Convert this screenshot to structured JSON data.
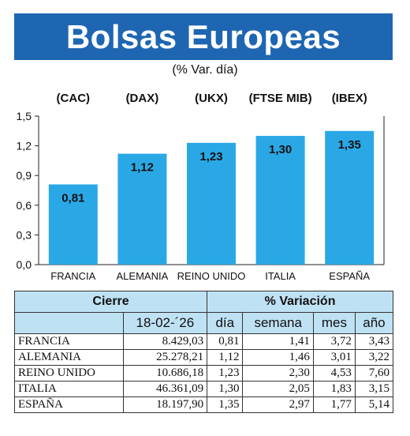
{
  "header": {
    "title": "Bolsas Europeas",
    "subtitle": "(% Var. día)"
  },
  "chart_data": {
    "type": "bar",
    "categories": [
      "FRANCIA",
      "ALEMANIA",
      "REINO UNIDO",
      "ITALIA",
      "ESPAÑA"
    ],
    "index_labels": [
      "(CAC)",
      "(DAX)",
      "(UKX)",
      "(FTSE MIB)",
      "(IBEX)"
    ],
    "values": [
      0.81,
      1.12,
      1.23,
      1.3,
      1.35
    ],
    "value_labels": [
      "0,81",
      "1,12",
      "1,23",
      "1,30",
      "1,35"
    ],
    "ylim": [
      0,
      1.5
    ],
    "yticks": [
      0,
      0.3,
      0.6,
      0.9,
      1.2,
      1.5
    ],
    "ytick_labels": [
      "0,0",
      "0,3",
      "0,6",
      "0,9",
      "1,2",
      "1,5"
    ],
    "grid": false,
    "bar_color": "#2aa8e6"
  },
  "table": {
    "group_headers": [
      "Cierre",
      "% Variación"
    ],
    "columns": [
      "18-02-´26",
      "día",
      "semana",
      "mes",
      "año"
    ],
    "rows": [
      {
        "name": "FRANCIA",
        "cierre": "8.429,03",
        "dia": "0,81",
        "semana": "1,41",
        "mes": "3,72",
        "anio": "3,43"
      },
      {
        "name": "ALEMANIA",
        "cierre": "25.278,21",
        "dia": "1,12",
        "semana": "1,46",
        "mes": "3,01",
        "anio": "3,22"
      },
      {
        "name": "REINO UNIDO",
        "cierre": "10.686,18",
        "dia": "1,23",
        "semana": "2,30",
        "mes": "4,53",
        "anio": "7,60"
      },
      {
        "name": "ITALIA",
        "cierre": "46.361,09",
        "dia": "1,30",
        "semana": "2,05",
        "mes": "1,83",
        "anio": "3,15"
      },
      {
        "name": "ESPAÑA",
        "cierre": "18.197,90",
        "dia": "1,35",
        "semana": "2,97",
        "mes": "1,77",
        "anio": "5,14"
      }
    ]
  },
  "colors": {
    "title_bg": "#1e66b2",
    "table_header_bg": "#bfe1f4"
  }
}
